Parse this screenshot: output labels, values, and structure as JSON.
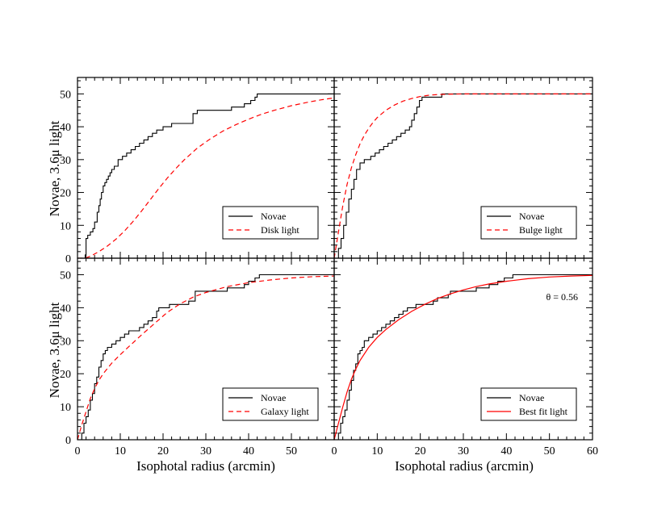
{
  "figure": {
    "xlabel": "Isophotal radius (arcmin)",
    "ylabel": "Novae, 3.6μ light"
  },
  "chart_data": [
    {
      "type": "line",
      "panel": "top-left",
      "xlim": [
        0,
        60
      ],
      "ylim": [
        0,
        55
      ],
      "x_ticks": [],
      "y_ticks": [
        0,
        10,
        20,
        30,
        40,
        50
      ],
      "legend_position": "bottom-right",
      "series": [
        {
          "name": "Novae",
          "style": "step",
          "color": "#000000",
          "x": [
            0.0,
            1.8,
            2.0,
            2.4,
            3.0,
            3.6,
            4.0,
            4.6,
            5.0,
            5.3,
            5.6,
            6.0,
            6.4,
            6.8,
            7.2,
            7.6,
            8.0,
            8.6,
            9.5,
            10.5,
            11.5,
            12.5,
            13.5,
            14.5,
            15.5,
            16.5,
            17.5,
            18.5,
            20.0,
            22.0,
            27.0,
            28.0,
            31.0,
            36.0,
            39.0,
            40.5,
            41.5,
            42.0,
            60.0
          ],
          "y": [
            0,
            1,
            6,
            7,
            8,
            9,
            11,
            14,
            16,
            18,
            20,
            22,
            23,
            24,
            25,
            26,
            27,
            28,
            30,
            31,
            32,
            33,
            34,
            35,
            36,
            37,
            38,
            39,
            40,
            41,
            44,
            45,
            45,
            46,
            47,
            48,
            49,
            50,
            50
          ]
        },
        {
          "name": "Disk light",
          "style": "dashed",
          "color": "#ff0000",
          "x": [
            0,
            1.8,
            3,
            5,
            7,
            9,
            11,
            13,
            15,
            17,
            19,
            21,
            23,
            25,
            28,
            31,
            34,
            37,
            40,
            43,
            46,
            50,
            54,
            57,
            60
          ],
          "y": [
            0,
            0,
            0.6,
            2.0,
            3.7,
            5.8,
            8.3,
            11.2,
            14.4,
            17.8,
            21.2,
            24.4,
            27.3,
            30,
            33.5,
            36.3,
            38.7,
            40.6,
            42.3,
            43.8,
            45,
            46.4,
            47.5,
            48.2,
            48.8
          ]
        }
      ]
    },
    {
      "type": "line",
      "panel": "top-right",
      "xlim": [
        0,
        60
      ],
      "ylim": [
        0,
        55
      ],
      "x_ticks": [],
      "y_ticks": [],
      "legend_position": "bottom-right",
      "series": [
        {
          "name": "Novae",
          "style": "step",
          "color": "#000000",
          "x": [
            0,
            1.0,
            1.6,
            2.2,
            2.8,
            3.4,
            4.0,
            4.6,
            5.2,
            6.0,
            7.0,
            8.5,
            9.5,
            10.5,
            11.5,
            12.5,
            13.5,
            14.5,
            15.5,
            16.5,
            17.5,
            18.0,
            18.6,
            19.2,
            19.8,
            20.4,
            21.5,
            25.0,
            60.0
          ],
          "y": [
            0,
            3,
            6,
            10,
            14,
            18,
            21,
            24,
            27,
            29,
            30,
            31,
            32,
            33,
            34,
            35,
            36,
            37,
            38,
            39,
            40,
            42,
            44,
            46,
            48,
            49,
            49,
            50,
            50
          ]
        },
        {
          "name": "Bulge light",
          "style": "dashed",
          "color": "#ff0000",
          "x": [
            0,
            1,
            2,
            3,
            4,
            5,
            6,
            7,
            8,
            9,
            10,
            12,
            14,
            16,
            18,
            20,
            22,
            24,
            26,
            30,
            40,
            50,
            60
          ],
          "y": [
            0,
            8,
            16,
            22.5,
            27.5,
            31.5,
            34.8,
            37.4,
            39.5,
            41.3,
            42.8,
            45,
            46.6,
            47.8,
            48.6,
            49.2,
            49.6,
            49.8,
            49.9,
            50,
            50,
            50,
            50
          ]
        }
      ]
    },
    {
      "type": "line",
      "panel": "bottom-left",
      "xlim": [
        0,
        60
      ],
      "ylim": [
        0,
        55
      ],
      "x_ticks": [
        0,
        10,
        20,
        30,
        40,
        50
      ],
      "y_ticks": [
        0,
        10,
        20,
        30,
        40,
        50
      ],
      "legend_position": "bottom-right",
      "series": [
        {
          "name": "Novae",
          "style": "step",
          "color": "#000000",
          "x": [
            0.0,
            1.0,
            1.5,
            2.0,
            2.5,
            3.0,
            3.5,
            4.0,
            4.5,
            5.0,
            5.5,
            6.0,
            6.5,
            7.0,
            8.0,
            9.0,
            10.0,
            11.0,
            12.0,
            14.5,
            15.5,
            16.5,
            17.5,
            18.5,
            19.0,
            21.5,
            26.0,
            27.5,
            29.0,
            35.0,
            39.0,
            40.0,
            41.5,
            42.5,
            60.0
          ],
          "y": [
            0,
            2,
            5,
            7,
            9,
            12,
            14,
            17,
            19,
            22,
            24,
            26,
            27,
            28,
            29,
            30,
            31,
            32,
            33,
            34,
            35,
            36,
            37,
            39,
            40,
            41,
            42,
            45,
            45,
            46,
            47,
            48,
            49,
            50,
            50
          ]
        },
        {
          "name": "Galaxy light",
          "style": "dashed",
          "color": "#ff0000",
          "x": [
            0,
            1,
            2,
            3,
            4,
            5,
            6,
            8,
            10,
            12,
            15,
            18,
            21,
            24,
            27,
            30,
            35,
            40,
            45,
            50,
            55,
            60
          ],
          "y": [
            0,
            4.5,
            8.5,
            12.5,
            15.5,
            18,
            20,
            23.2,
            25.8,
            28.2,
            31.8,
            35.2,
            38.6,
            41.2,
            43.2,
            44.6,
            46.4,
            47.6,
            48.4,
            49,
            49.4,
            49.6
          ]
        }
      ]
    },
    {
      "type": "line",
      "panel": "bottom-right",
      "xlim": [
        0,
        60
      ],
      "ylim": [
        0,
        55
      ],
      "x_ticks": [
        0,
        10,
        20,
        30,
        40,
        50,
        60
      ],
      "y_ticks": [],
      "legend_position": "bottom-right",
      "annotation": "θ = 0.56",
      "series": [
        {
          "name": "Novae",
          "style": "step",
          "color": "#000000",
          "x": [
            0,
            1.0,
            1.5,
            2.0,
            2.5,
            3.0,
            3.5,
            4.0,
            4.5,
            5.0,
            5.5,
            6.0,
            6.5,
            7.0,
            8.0,
            9.0,
            10.0,
            11.0,
            12.0,
            13.0,
            14.0,
            15.0,
            16.0,
            17.0,
            18.0,
            19.0,
            22.0,
            23.0,
            24.0,
            26.5,
            27.0,
            33.0,
            36.0,
            38.0,
            39.5,
            40.5,
            41.5,
            60.0
          ],
          "y": [
            0,
            2,
            5,
            7,
            9,
            12,
            15,
            18,
            21,
            23,
            26,
            27,
            28,
            30,
            31,
            32,
            33,
            34,
            35,
            36,
            37,
            38,
            39,
            40,
            40,
            41,
            41,
            42,
            43,
            44,
            45,
            46,
            47,
            48,
            49,
            49,
            50,
            50
          ]
        },
        {
          "name": "Best fit light",
          "style": "solid",
          "color": "#ff0000",
          "x": [
            0,
            1,
            2,
            3,
            4,
            5,
            6,
            8,
            10,
            12,
            15,
            18,
            21,
            24,
            27,
            30,
            33,
            36,
            40,
            45,
            50,
            55,
            60
          ],
          "y": [
            0,
            5,
            10,
            14.5,
            18.3,
            21.4,
            24,
            28,
            31,
            33.4,
            36.4,
            38.9,
            41,
            42.8,
            44.2,
            45.4,
            46.4,
            47.2,
            48,
            48.8,
            49.3,
            49.6,
            49.8
          ]
        }
      ]
    }
  ]
}
